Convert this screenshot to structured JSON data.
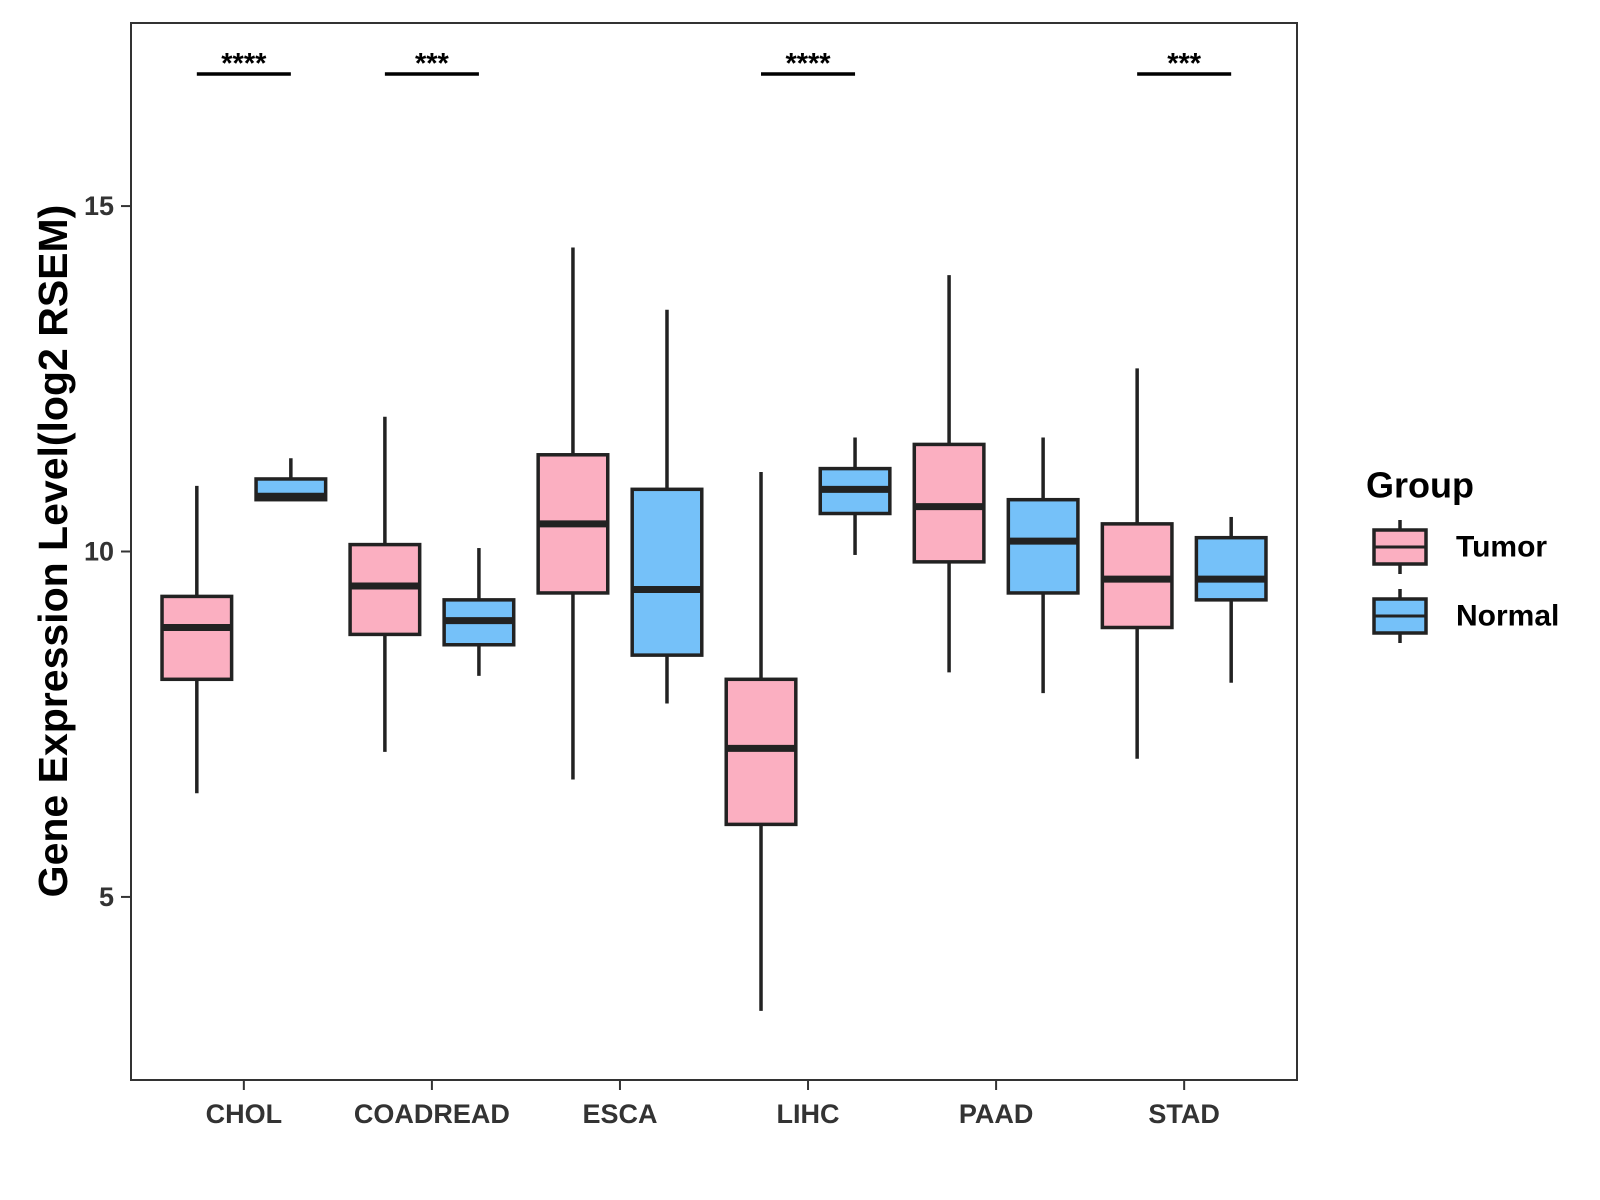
{
  "chart_data": {
    "type": "boxplot",
    "title": "",
    "xlabel": "",
    "ylabel": "Gene Expression Level(log2 RSEM)",
    "ylim": [
      2.35,
      17.65
    ],
    "yticks": [
      5,
      10,
      15
    ],
    "categories": [
      "CHOL",
      "COADREAD",
      "ESCA",
      "LIHC",
      "PAAD",
      "STAD"
    ],
    "legend": {
      "title": "Group",
      "position": "right",
      "entries": [
        {
          "label": "Tumor",
          "color": "#fbafc1"
        },
        {
          "label": "Normal",
          "color": "#75c1f9"
        }
      ]
    },
    "series": [
      {
        "name": "Tumor",
        "color": "#fbafc1",
        "boxes": [
          {
            "min": 6.5,
            "q1": 8.15,
            "median": 8.9,
            "q3": 9.35,
            "max": 10.95
          },
          {
            "min": 7.1,
            "q1": 8.8,
            "median": 9.5,
            "q3": 10.1,
            "max": 11.95
          },
          {
            "min": 6.7,
            "q1": 9.4,
            "median": 10.4,
            "q3": 11.4,
            "max": 14.4
          },
          {
            "min": 3.35,
            "q1": 6.05,
            "median": 7.15,
            "q3": 8.15,
            "max": 11.15
          },
          {
            "min": 8.25,
            "q1": 9.85,
            "median": 10.65,
            "q3": 11.55,
            "max": 14.0
          },
          {
            "min": 7.0,
            "q1": 8.9,
            "median": 9.6,
            "q3": 10.4,
            "max": 12.65
          }
        ]
      },
      {
        "name": "Normal",
        "color": "#75c1f9",
        "boxes": [
          {
            "min": 10.75,
            "q1": 10.75,
            "median": 10.8,
            "q3": 11.05,
            "max": 11.35
          },
          {
            "min": 8.2,
            "q1": 8.65,
            "median": 9.0,
            "q3": 9.3,
            "max": 10.05
          },
          {
            "min": 7.8,
            "q1": 8.5,
            "median": 9.45,
            "q3": 10.9,
            "max": 13.5
          },
          {
            "min": 9.95,
            "q1": 10.55,
            "median": 10.9,
            "q3": 11.2,
            "max": 11.65
          },
          {
            "min": 7.95,
            "q1": 9.4,
            "median": 10.15,
            "q3": 10.75,
            "max": 11.65
          },
          {
            "min": 8.1,
            "q1": 9.3,
            "median": 9.6,
            "q3": 10.2,
            "max": 10.5
          }
        ]
      }
    ],
    "annotations": [
      {
        "category": "CHOL",
        "label": "****"
      },
      {
        "category": "COADREAD",
        "label": "***"
      },
      {
        "category": "LIHC",
        "label": "****"
      },
      {
        "category": "STAD",
        "label": "***"
      }
    ],
    "grid": false
  }
}
